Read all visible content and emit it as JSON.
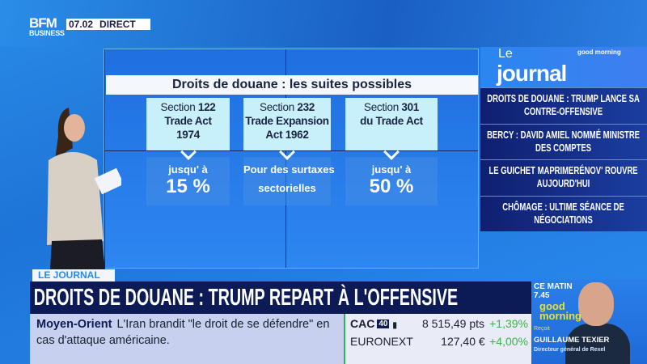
{
  "channel": {
    "logo_top": "BFM",
    "logo_bottom": "BUSINESS",
    "time": "07.02",
    "live": "DIRECT"
  },
  "wall": {
    "title": "Droits de douane : les suites possibles",
    "cards": [
      {
        "line1": "Section",
        "num": "122",
        "line2": "Trade Act",
        "line3": "1974",
        "lower_small": "jusqu' à",
        "lower_big": "15 %"
      },
      {
        "line1": "Section",
        "num": "232",
        "line2": "Trade Expansion",
        "line3": "Act 1962",
        "lower_small": "Pour des surtaxes",
        "lower_big": "sectorielles"
      },
      {
        "line1": "Section",
        "num": "301",
        "line2": "du Trade Act",
        "line3": "",
        "lower_small": "jusqu' à",
        "lower_big": "50 %"
      }
    ]
  },
  "journal": {
    "logo_le": "Le",
    "logo_journal": "journal",
    "logo_gm": "good morning",
    "headlines": [
      "DROITS DE DOUANE : TRUMP LANCE SA CONTRE-OFFENSIVE",
      "BERCY : DAVID AMIEL NOMMÉ MINISTRE DES COMPTES",
      "LE GUICHET MAPRIMERÉNOV' ROUVRE AUJOURD'HUI",
      "CHÔMAGE : ULTIME SÉANCE DE NÉGOCIATIONS"
    ]
  },
  "lower_third": {
    "tab": "LE JOURNAL",
    "headline": "DROITS DE DOUANE : TRUMP REPART À L'OFFENSIVE",
    "ticker_tag": "Moyen-Orient",
    "ticker_text": "L'Iran brandit \"le droit de se défendre\" en cas d'attaque américaine."
  },
  "market": [
    {
      "name": "CAC",
      "badge": "40",
      "value": "8 515,49 pts",
      "change": "+1,39%"
    },
    {
      "name": "EURONEXT",
      "badge": "",
      "value": "127,40 €",
      "change": "+4,00%"
    }
  ],
  "promo": {
    "when": "CE MATIN",
    "time": "7.45",
    "show": "good morning",
    "received": "Reçoit",
    "guest": "GUILLAUME TEXIER",
    "role": "Directeur général de Rexel"
  },
  "colors": {
    "navy": "#0c1a55",
    "accent": "#2b8bea",
    "positive": "#3bb24a",
    "highlight": "#e6e03a"
  }
}
